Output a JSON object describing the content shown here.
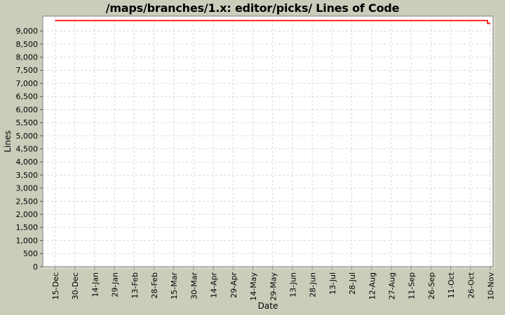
{
  "colors": {
    "background": "#ccccbb",
    "plot_background": "#ffffff",
    "gridline": "#d8d8d8",
    "plot_border": "#7f7f7f",
    "bevel_highlight": "#e9e9db",
    "tick_mark": "#555555",
    "tick_text": "#000000",
    "series_red": "#ff0000"
  },
  "chart_data": {
    "type": "line",
    "title": "/maps/branches/1.x: editor/picks/ Lines of Code",
    "xlabel": "Date",
    "ylabel": "Lines",
    "legend": "none",
    "grid": "dashed",
    "x_tick_labels": [
      "15-Dec",
      "30-Dec",
      "14-Jan",
      "29-Jan",
      "13-Feb",
      "28-Feb",
      "15-Mar",
      "30-Mar",
      "14-Apr",
      "29-Apr",
      "14-May",
      "29-May",
      "13-Jun",
      "28-Jun",
      "13-Jul",
      "28-Jul",
      "12-Aug",
      "27-Aug",
      "11-Sep",
      "26-Sep",
      "11-Oct",
      "26-Oct",
      "10-Nov"
    ],
    "x_tick_interval_days": 15,
    "x_range_days": [
      0,
      330
    ],
    "y_tick_values": [
      0,
      500,
      1000,
      1500,
      2000,
      2500,
      3000,
      3500,
      4000,
      4500,
      5000,
      5500,
      6000,
      6500,
      7000,
      7500,
      8000,
      8500,
      9000
    ],
    "ylim": [
      0,
      9570
    ],
    "series": [
      {
        "color": "#ff0000",
        "points_day_value": [
          [
            0,
            9400
          ],
          [
            328,
            9400
          ],
          [
            328,
            9290
          ],
          [
            330,
            9290
          ]
        ]
      }
    ]
  }
}
